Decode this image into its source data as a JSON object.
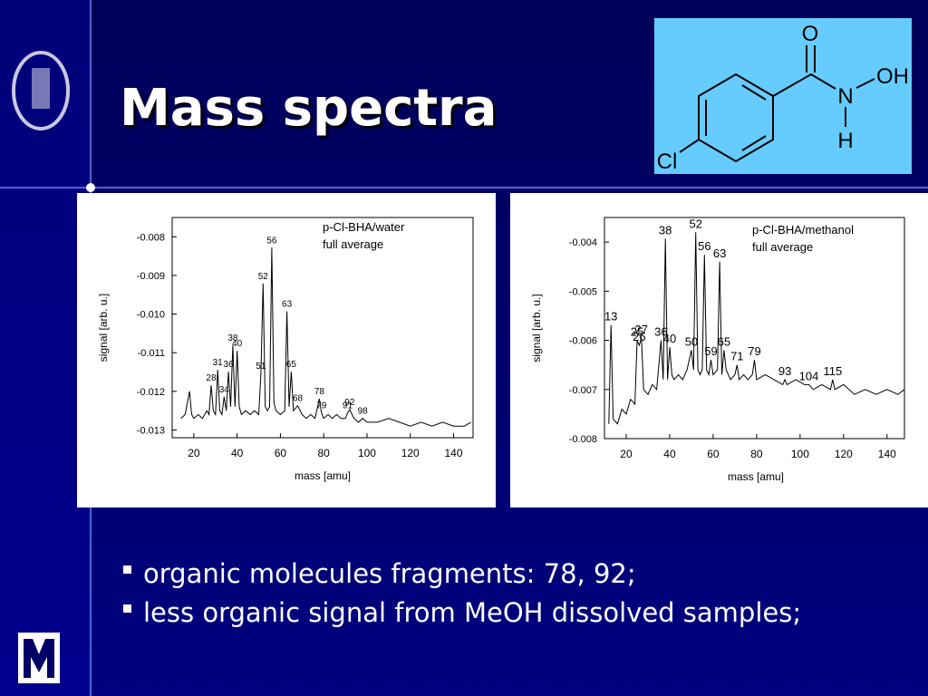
{
  "slide": {
    "title": "Mass spectra",
    "bullets": [
      "organic molecules fragments: 78, 92;",
      "less organic signal from MeOH dissolved samples;"
    ]
  },
  "molecule": {
    "atoms": [
      "O",
      "N",
      "OH",
      "H",
      "Cl"
    ]
  },
  "chart_data": [
    {
      "type": "line",
      "color": "#000000",
      "legend_text": [
        "p-Cl-BHA/water",
        "full average"
      ],
      "xlabel": "mass [amu]",
      "ylabel": "signal [arb. u.]",
      "xlim": [
        10,
        149
      ],
      "ylim": [
        -0.0132,
        -0.0075
      ],
      "xticks": [
        20,
        40,
        60,
        80,
        100,
        120,
        140
      ],
      "yticks": [
        -0.008,
        -0.009,
        {
          "value": -0.01,
          "label": "-0.010"
        },
        -0.011,
        -0.012,
        -0.013
      ],
      "x": [
        14,
        16,
        18,
        19,
        20,
        22,
        24,
        26,
        27,
        28,
        29,
        30,
        31,
        32,
        33,
        34,
        35,
        36,
        37,
        38,
        39,
        40,
        41,
        42,
        44,
        46,
        48,
        50,
        51,
        52,
        53,
        54,
        55,
        56,
        57,
        58,
        60,
        62,
        63,
        64,
        65,
        66,
        68,
        70,
        72,
        74,
        76,
        78,
        79,
        80,
        82,
        84,
        86,
        88,
        90,
        91,
        92,
        94,
        96,
        98,
        100,
        105,
        110,
        115,
        120,
        125,
        130,
        135,
        140,
        145,
        148
      ],
      "values": [
        -0.0127,
        -0.0126,
        -0.012,
        -0.0126,
        -0.0127,
        -0.0126,
        -0.0127,
        -0.0125,
        -0.0126,
        -0.01184,
        -0.0125,
        -0.0126,
        -0.01144,
        -0.0125,
        -0.0126,
        -0.01214,
        -0.0125,
        -0.01149,
        -0.0124,
        -0.01081,
        -0.0124,
        -0.01095,
        -0.0124,
        -0.0126,
        -0.0125,
        -0.0126,
        -0.0125,
        -0.0126,
        -0.01153,
        -0.00921,
        -0.0124,
        -0.0125,
        -0.0124,
        -0.00828,
        -0.0123,
        -0.0125,
        -0.0126,
        -0.0125,
        -0.00993,
        -0.0124,
        -0.01149,
        -0.0125,
        -0.01237,
        -0.0126,
        -0.0127,
        -0.0126,
        -0.0127,
        -0.01219,
        -0.01256,
        -0.0127,
        -0.0126,
        -0.0127,
        -0.0126,
        -0.0127,
        -0.0127,
        -0.01256,
        -0.01247,
        -0.0127,
        -0.0128,
        -0.0127,
        -0.0128,
        -0.0128,
        -0.0127,
        -0.0128,
        -0.0129,
        -0.0128,
        -0.0129,
        -0.0128,
        -0.0129,
        -0.0129,
        -0.0128
      ],
      "peak_labels": [
        56,
        52,
        63,
        38,
        40,
        31,
        36,
        28,
        34,
        51,
        65,
        78,
        68,
        92,
        79,
        91,
        98
      ]
    },
    {
      "type": "line",
      "color": "#000000",
      "legend_text": [
        "p-Cl-BHA/methanol",
        "full average"
      ],
      "xlabel": "mass [amu]",
      "ylabel": "signal [arb. u.]",
      "xlim": [
        10,
        148
      ],
      "ylim": [
        -0.008,
        -0.0035
      ],
      "xticks": [
        20,
        40,
        60,
        80,
        100,
        120,
        140
      ],
      "yticks": [
        -0.004,
        -0.005,
        -0.006,
        -0.007,
        -0.008
      ],
      "x": [
        12,
        13,
        14,
        16,
        18,
        20,
        22,
        24,
        25,
        26,
        27,
        28,
        30,
        32,
        34,
        36,
        37,
        38,
        39,
        40,
        41,
        42,
        44,
        46,
        48,
        50,
        51,
        52,
        53,
        54,
        55,
        56,
        57,
        58,
        59,
        60,
        62,
        63,
        64,
        65,
        66,
        68,
        70,
        71,
        72,
        74,
        76,
        78,
        79,
        80,
        84,
        88,
        92,
        93,
        94,
        98,
        102,
        104,
        106,
        110,
        114,
        115,
        116,
        120,
        125,
        130,
        135,
        140,
        145,
        148
      ],
      "values": [
        -0.0077,
        -0.00569,
        -0.0076,
        -0.0077,
        -0.0074,
        -0.0075,
        -0.0072,
        -0.0073,
        -0.006,
        -0.0061,
        -0.00595,
        -0.007,
        -0.0071,
        -0.0069,
        -0.007,
        -0.006,
        -0.0068,
        -0.00393,
        -0.0068,
        -0.00614,
        -0.0067,
        -0.0068,
        -0.0067,
        -0.0068,
        -0.0066,
        -0.0062,
        -0.0066,
        -0.0038,
        -0.0066,
        -0.0067,
        -0.0066,
        -0.00426,
        -0.0066,
        -0.0067,
        -0.0064,
        -0.0067,
        -0.0066,
        -0.0044,
        -0.0067,
        -0.0062,
        -0.0066,
        -0.0068,
        -0.0067,
        -0.0065,
        -0.0068,
        -0.0067,
        -0.0068,
        -0.0067,
        -0.0064,
        -0.0068,
        -0.0067,
        -0.0068,
        -0.0069,
        -0.0068,
        -0.0069,
        -0.0068,
        -0.0069,
        -0.0069,
        -0.007,
        -0.0069,
        -0.007,
        -0.0068,
        -0.007,
        -0.0069,
        -0.0071,
        -0.007,
        -0.0071,
        -0.007,
        -0.0071,
        -0.007
      ],
      "peak_labels": [
        13,
        25,
        26,
        27,
        36,
        38,
        40,
        50,
        52,
        56,
        59,
        63,
        65,
        71,
        79,
        93,
        104,
        115
      ]
    }
  ]
}
